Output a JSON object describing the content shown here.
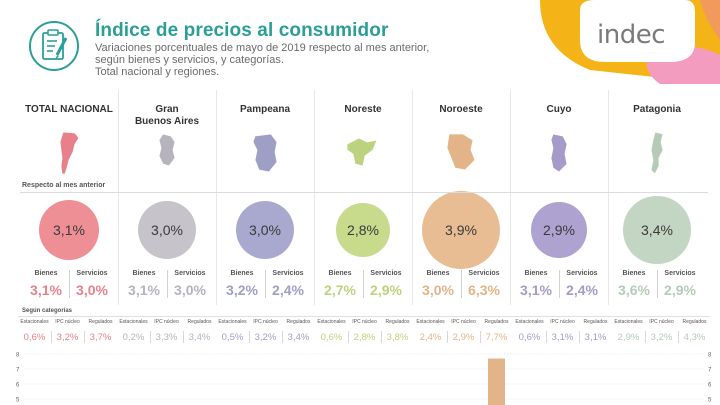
{
  "header": {
    "title": "Índice de precios al consumidor",
    "subtitle_lines": [
      "Variaciones porcentuales de mayo de 2019 respecto al mes anterior,",
      "según bienes y servicios, y categorías.",
      "Total nacional y regiones."
    ],
    "logo": "indec",
    "icon": "clipboard-pencil-icon",
    "colors": {
      "title": "#2b9e98",
      "logo_text": "#7a7a7a"
    }
  },
  "section_labels": {
    "respecto": "Respecto al mes anterior",
    "segun": "Según categorías"
  },
  "column_labels": {
    "bienes": "Bienes",
    "servicios": "Servicios"
  },
  "category_labels": [
    "Estacionales",
    "IPC núcleo",
    "Regulados"
  ],
  "chart_data": {
    "type": "bar",
    "metric": "Variación porcentual mensual (%)",
    "regions": [
      {
        "name_lines": [
          "TOTAL NACIONAL"
        ],
        "nivel_general": "3,1%",
        "nivel_value": 3.1,
        "bienes": "3,1%",
        "servicios": "3,0%",
        "estacionales": "0,6%",
        "ipc_nucleo": "3,2%",
        "regulados": "3,7%",
        "color": "#e8808a",
        "bubble_fill": "#ee8f96",
        "highlight": true,
        "map": "argentina-map-icon"
      },
      {
        "name_lines": [
          "Gran",
          "Buenos Aires"
        ],
        "nivel_general": "3,0%",
        "nivel_value": 3.0,
        "bienes": "3,1%",
        "servicios": "3,0%",
        "estacionales": "0,2%",
        "ipc_nucleo": "3,3%",
        "regulados": "3,4%",
        "color": "#b7b3bd",
        "bubble_fill": "#c7c3cb",
        "highlight": false,
        "map": "gba-map-icon"
      },
      {
        "name_lines": [
          "Pampeana"
        ],
        "nivel_general": "3,0%",
        "nivel_value": 3.0,
        "bienes": "3,2%",
        "servicios": "2,4%",
        "estacionales": "0,5%",
        "ipc_nucleo": "3,2%",
        "regulados": "3,4%",
        "color": "#9e9fc4",
        "bubble_fill": "#a9a9cf",
        "highlight": false,
        "map": "pampeana-map-icon"
      },
      {
        "name_lines": [
          "Noreste"
        ],
        "nivel_general": "2,8%",
        "nivel_value": 2.8,
        "bienes": "2,7%",
        "servicios": "2,9%",
        "estacionales": "0,6%",
        "ipc_nucleo": "2,8%",
        "regulados": "3,8%",
        "color": "#bdd27e",
        "bubble_fill": "#c8da8b",
        "highlight": false,
        "map": "noreste-map-icon"
      },
      {
        "name_lines": [
          "Noroeste"
        ],
        "nivel_general": "3,9%",
        "nivel_value": 3.9,
        "bienes": "3,0%",
        "servicios": "6,3%",
        "estacionales": "2,4%",
        "ipc_nucleo": "2,9%",
        "regulados": "7,7%",
        "color": "#e2b488",
        "bubble_fill": "#e8bd93",
        "highlight": false,
        "map": "noroeste-map-icon"
      },
      {
        "name_lines": [
          "Cuyo"
        ],
        "nivel_general": "2,9%",
        "nivel_value": 2.9,
        "bienes": "3,1%",
        "servicios": "2,4%",
        "estacionales": "0,6%",
        "ipc_nucleo": "3,1%",
        "regulados": "3,1%",
        "color": "#a69ac8",
        "bubble_fill": "#aea2d0",
        "highlight": false,
        "map": "cuyo-map-icon"
      },
      {
        "name_lines": [
          "Patagonia"
        ],
        "nivel_general": "3,4%",
        "nivel_value": 3.4,
        "bienes": "3,6%",
        "servicios": "2,9%",
        "estacionales": "2,9%",
        "ipc_nucleo": "3,2%",
        "regulados": "4,3%",
        "color": "#b5cbb6",
        "bubble_fill": "#c3d6c3",
        "highlight": false,
        "map": "patagonia-map-icon"
      }
    ],
    "category_chart": {
      "y_ticks": [
        8,
        7,
        6,
        5
      ],
      "visible_bars": [
        {
          "region_index": 4,
          "category": "Regulados",
          "value": 7.7
        }
      ]
    }
  }
}
